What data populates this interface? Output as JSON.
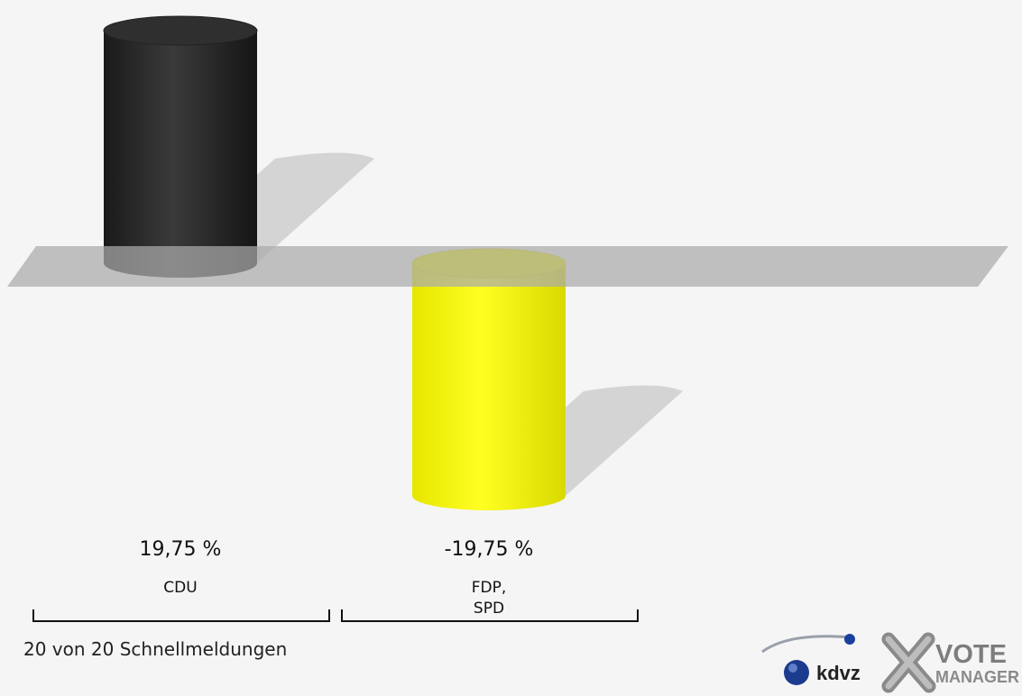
{
  "chart_data": {
    "type": "bar",
    "categories": [
      "CDU",
      "FDP,\nSPD"
    ],
    "values": [
      19.75,
      -19.75
    ],
    "value_labels": [
      "19,75 %",
      "-19,75 %"
    ],
    "category_labels": [
      [
        "CDU"
      ],
      [
        "FDP,",
        "SPD"
      ]
    ],
    "colors": [
      "#2b2b2b",
      "#f2f20a"
    ],
    "ylim": [
      -19.75,
      19.75
    ],
    "legend": "none",
    "grid": false,
    "style": "3d-cylinder"
  },
  "footnote": "20 von 20 Schnellmeldungen",
  "logo": {
    "brand": "kdvz",
    "product_line1": "VOTE",
    "product_line2": "MANAGER"
  },
  "colors": {
    "background": "#f5f5f5",
    "baseline_plane": "#aaaaaa",
    "shadow": "#d4d4d4"
  }
}
